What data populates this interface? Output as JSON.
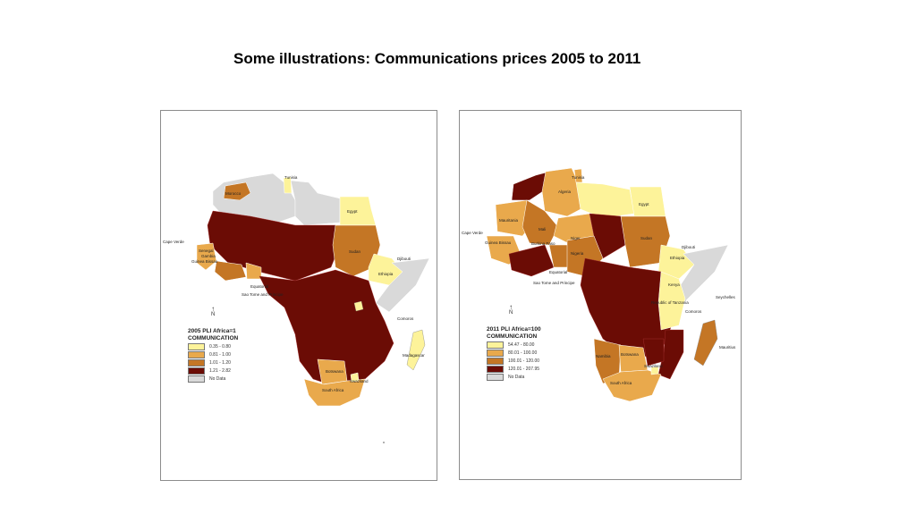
{
  "slide": {
    "title": "Some illustrations: Communications prices 2005 to 2011"
  },
  "colors": {
    "lightest": "#fdf39a",
    "light": "#e9a94c",
    "medium": "#c47625",
    "dark": "#6b0c05",
    "nodata": "#d9d9d9"
  },
  "maps": [
    {
      "legend": {
        "title": "2005 PLI Africa=1",
        "subtitle": "COMMUNICATION",
        "items": [
          {
            "label": "0.35 - 0.80",
            "color": "#fdf39a"
          },
          {
            "label": "0.81 - 1.00",
            "color": "#e9a94c"
          },
          {
            "label": "1.01 - 1.20",
            "color": "#c47625"
          },
          {
            "label": "1.21 - 2.82",
            "color": "#6b0c05"
          },
          {
            "label": "No Data",
            "color": "#d9d9d9"
          }
        ]
      },
      "north_label": "N",
      "country_labels": {
        "tunisia": "Tunisia",
        "morocco": "Morocco",
        "egypt": "Egypt",
        "sudan": "Sudan",
        "ethiopia": "Ethiopia",
        "djibouti": "Djibouti",
        "cape_verde": "Cape Verde",
        "senegal": "Senegal",
        "gambia": "Gambia",
        "guinea_bissau": "Guinea Bissau",
        "equatorial": "Equatorial",
        "sao_tome": "Sao Tome and Principe",
        "madagascar": "Madagascar",
        "comoros": "Comoros",
        "botswana": "Botswana",
        "swaziland": "Swaziland",
        "south_africa": "South Africa"
      }
    },
    {
      "legend": {
        "title": "2011 PLI Africa=100",
        "subtitle": "COMMUNICATION",
        "items": [
          {
            "label": "54.47 - 80.00",
            "color": "#fdf39a"
          },
          {
            "label": "80.01 - 100.00",
            "color": "#e9a94c"
          },
          {
            "label": "100.01 - 120.00",
            "color": "#c47625"
          },
          {
            "label": "120.01 - 207.95",
            "color": "#6b0c05"
          },
          {
            "label": "No Data",
            "color": "#d9d9d9"
          }
        ]
      },
      "north_label": "N",
      "country_labels": {
        "tunisia": "Tunisia",
        "algeria": "Algeria",
        "egypt": "Egypt",
        "mauritania": "Mauritania",
        "mali": "Mali",
        "burkina_faso": "Burkina Faso",
        "niger": "Niger",
        "nigeria": "Nigeria",
        "sudan": "Sudan",
        "djibouti": "Djibouti",
        "ethiopia": "Ethiopia",
        "kenya": "Kenya",
        "tanzania": "Republic of Tanzania",
        "cape_verde": "Cape Verde",
        "guinea_bissau": "Guinea Bissau",
        "equatorial": "Equatorial",
        "sao_tome": "Sao Tome and Principe",
        "seychelles": "Seychelles",
        "mauritius": "Mauritius",
        "comoros": "Comoros",
        "namibia": "Namibia",
        "botswana": "Botswana",
        "swaziland": "Swaziland",
        "south_africa": "South Africa"
      }
    }
  ]
}
